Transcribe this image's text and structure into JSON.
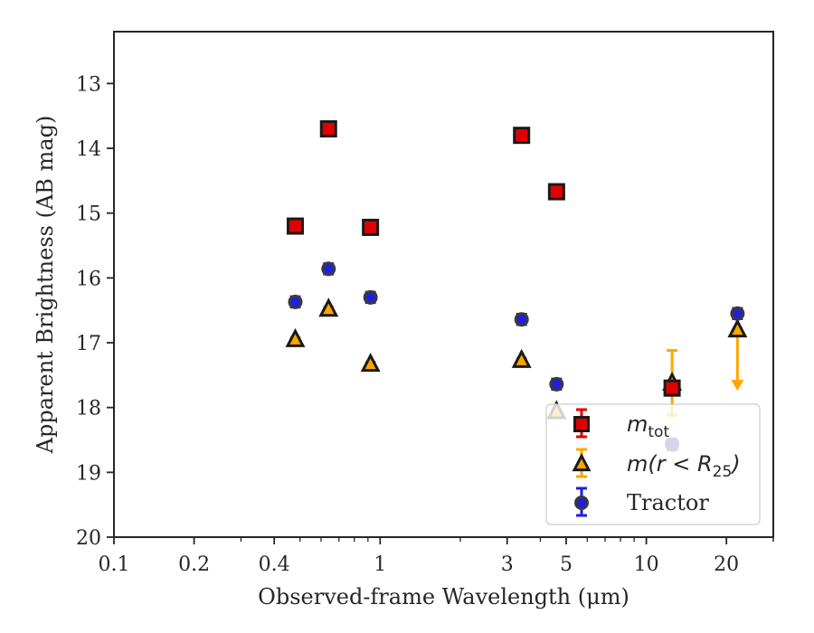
{
  "chart_data": {
    "type": "scatter",
    "title": "",
    "xlabel": "Observed-frame Wavelength (μm)",
    "ylabel": "Apparent Brightness (AB mag)",
    "xscale": "log",
    "xlim": [
      0.1,
      30
    ],
    "ylim": [
      20,
      12.2
    ],
    "y_inverted": true,
    "x_ticks": [
      {
        "value": 0.1,
        "label": "0.1"
      },
      {
        "value": 0.2,
        "label": "0.2"
      },
      {
        "value": 0.4,
        "label": "0.4"
      },
      {
        "value": 1,
        "label": "1"
      },
      {
        "value": 3,
        "label": "3"
      },
      {
        "value": 5,
        "label": "5"
      },
      {
        "value": 10,
        "label": "10"
      },
      {
        "value": 20,
        "label": "20"
      }
    ],
    "y_ticks": [
      {
        "value": 13,
        "label": "13"
      },
      {
        "value": 14,
        "label": "14"
      },
      {
        "value": 15,
        "label": "15"
      },
      {
        "value": 16,
        "label": "16"
      },
      {
        "value": 17,
        "label": "17"
      },
      {
        "value": 18,
        "label": "18"
      },
      {
        "value": 19,
        "label": "19"
      },
      {
        "value": 20,
        "label": "20"
      }
    ],
    "grid": false,
    "legend_position": "lower-right",
    "series": [
      {
        "name": "m_tot",
        "label_main": "m",
        "label_sub": "tot",
        "marker": "square",
        "face_color": "#e00000",
        "error_color": "#e00000",
        "points": [
          {
            "x": 0.48,
            "y": 15.2,
            "err": 0.05
          },
          {
            "x": 0.64,
            "y": 13.7,
            "err": 0.05
          },
          {
            "x": 0.92,
            "y": 15.22,
            "err": 0.05
          },
          {
            "x": 3.4,
            "y": 13.8,
            "err": 0.05
          },
          {
            "x": 4.6,
            "y": 14.67,
            "err": 0.05
          },
          {
            "x": 12.5,
            "y": 17.7,
            "err": 0.08
          }
        ]
      },
      {
        "name": "m(r < R_25)",
        "label_main": "m(r < R",
        "label_sub": "25",
        "label_tail": ")",
        "marker": "triangle",
        "face_color": "#ffa500",
        "error_color": "#ffa500",
        "points": [
          {
            "x": 0.48,
            "y": 16.95,
            "err": 0.03
          },
          {
            "x": 0.64,
            "y": 16.48,
            "err": 0.03
          },
          {
            "x": 0.92,
            "y": 17.33,
            "err": 0.03
          },
          {
            "x": 3.4,
            "y": 17.27,
            "err": 0.03
          },
          {
            "x": 4.6,
            "y": 18.06,
            "err": 0.03
          },
          {
            "x": 12.5,
            "y": 17.62,
            "err": 0.5
          },
          {
            "x": 22,
            "y": 16.8,
            "upper_limit": true,
            "arrow_to": 17.7
          }
        ]
      },
      {
        "name": "Tractor",
        "label_main": "Tractor",
        "marker": "circle",
        "face_color": "#1f1fe0",
        "error_color": "#1f1fe0",
        "points": [
          {
            "x": 0.48,
            "y": 16.37,
            "err": 0.08
          },
          {
            "x": 0.64,
            "y": 15.86,
            "err": 0.08
          },
          {
            "x": 0.92,
            "y": 16.3,
            "err": 0.08
          },
          {
            "x": 3.4,
            "y": 16.64,
            "err": 0.08
          },
          {
            "x": 4.6,
            "y": 17.64,
            "err": 0.08
          },
          {
            "x": 12.5,
            "y": 18.57,
            "err": 0.08
          },
          {
            "x": 22,
            "y": 16.55,
            "err": 0.08
          }
        ]
      }
    ]
  }
}
